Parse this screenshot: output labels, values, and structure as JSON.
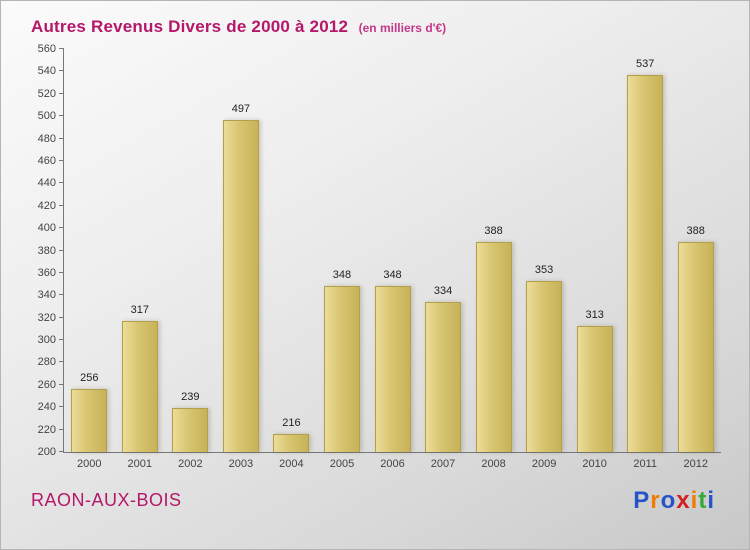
{
  "title": {
    "text": "Autres Revenus Divers de 2000 à 2012",
    "subtitle": "(en milliers d'€)"
  },
  "footer": {
    "commune": "RAON-AUX-BOIS",
    "logo_letters": [
      {
        "ch": "P",
        "color": "#2753c8"
      },
      {
        "ch": "r",
        "color": "#f07d00"
      },
      {
        "ch": "o",
        "color": "#2753c8"
      },
      {
        "ch": "x",
        "color": "#d42020"
      },
      {
        "ch": "i",
        "color": "#f07d00"
      },
      {
        "ch": "t",
        "color": "#35a835"
      },
      {
        "ch": "i",
        "color": "#2753c8"
      }
    ]
  },
  "colors": {
    "bar_light": "#ecdd98",
    "bar_dark": "#c7b258",
    "title_pink": "#b5176a",
    "axis_gray": "#777777"
  },
  "chart_data": {
    "type": "bar",
    "title": "Autres Revenus Divers de 2000 à 2012",
    "subtitle": "(en milliers d'€)",
    "categories": [
      "2000",
      "2001",
      "2002",
      "2003",
      "2004",
      "2005",
      "2006",
      "2007",
      "2008",
      "2009",
      "2010",
      "2011",
      "2012"
    ],
    "values": [
      256,
      317,
      239,
      497,
      216,
      348,
      348,
      334,
      388,
      353,
      313,
      537,
      388
    ],
    "xlabel": "",
    "ylabel": "",
    "ylim": [
      200,
      560
    ],
    "ytick_step": 20,
    "grid": false,
    "legend": false,
    "value_labels": true
  }
}
